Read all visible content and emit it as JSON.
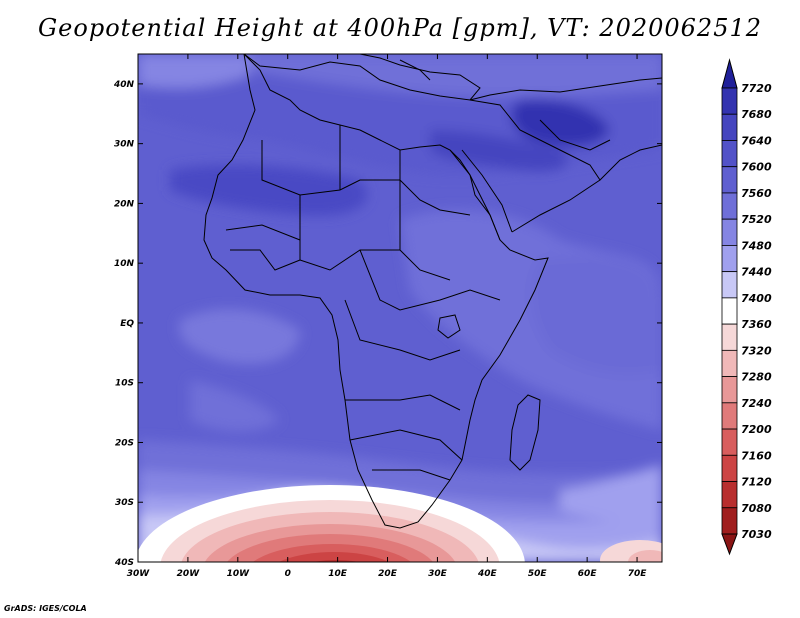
{
  "title": "Geopotential Height at 400hPa [gpm], VT: 2020062512",
  "credit": "GrADS: IGES/COLA",
  "x_axis": {
    "labels": [
      "30W",
      "20W",
      "10W",
      "0",
      "10E",
      "20E",
      "30E",
      "40E",
      "50E",
      "60E",
      "70E"
    ],
    "values": [
      -30,
      -20,
      -10,
      0,
      10,
      20,
      30,
      40,
      50,
      60,
      70
    ],
    "range": [
      -30,
      75
    ]
  },
  "y_axis": {
    "labels": [
      "40N",
      "30N",
      "20N",
      "10N",
      "EQ",
      "10S",
      "20S",
      "30S",
      "40S"
    ],
    "values": [
      40,
      30,
      20,
      10,
      0,
      -10,
      -20,
      -30,
      -40
    ],
    "range": [
      -40,
      45
    ]
  },
  "colorbar": {
    "levels": [
      "7720",
      "7680",
      "7640",
      "7600",
      "7560",
      "7520",
      "7480",
      "7440",
      "7400",
      "7360",
      "7320",
      "7280",
      "7240",
      "7200",
      "7160",
      "7120",
      "7080",
      "7030"
    ],
    "colors": [
      "#20209a",
      "#3333b0",
      "#4545bf",
      "#5252c8",
      "#5f5fd0",
      "#6f6fd8",
      "#8585e3",
      "#a0a0ee",
      "#c8c8f6",
      "#ffffff",
      "#f6d8d8",
      "#f0b8b8",
      "#e89898",
      "#e07a7a",
      "#d85e5e",
      "#cc4444",
      "#b82e2e",
      "#a01e1e",
      "#8a1515"
    ]
  }
}
